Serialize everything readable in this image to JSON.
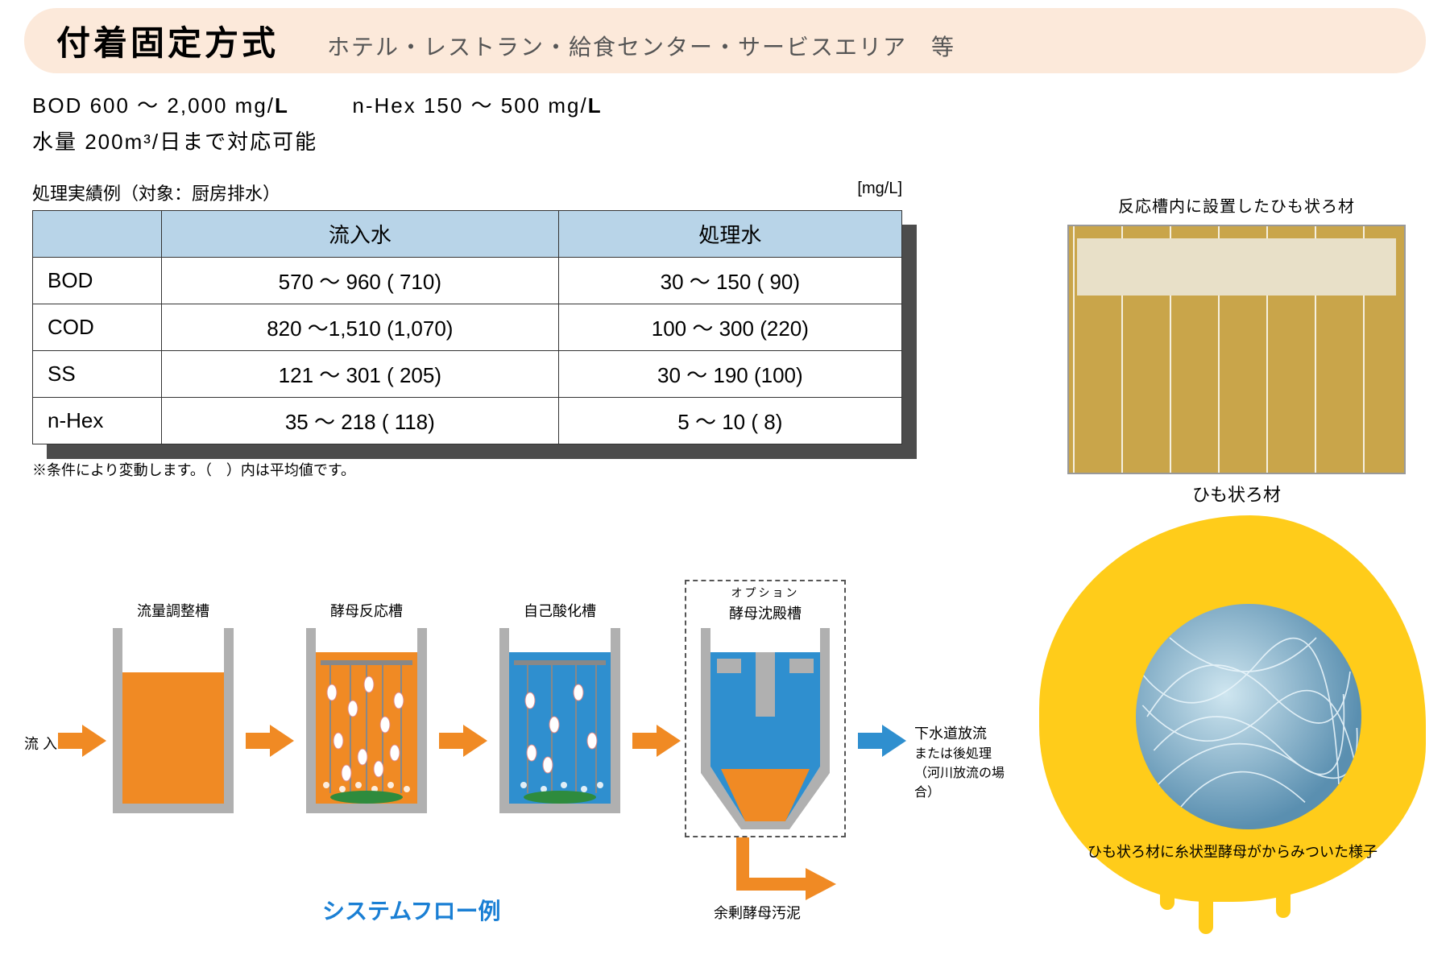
{
  "header": {
    "title": "付着固定方式",
    "subtitle": "ホテル・レストラン・給食センター・サービスエリア　等"
  },
  "specs": {
    "line1_left": "BOD 600 ～ 2,000 mg/",
    "line1_mid": "L",
    "line1_right": "n-Hex 150 ～ 500 mg/",
    "line1_end": "L",
    "line2": "水量 200m³/日まで対応可能"
  },
  "table": {
    "caption": "処理実績例（対象：厨房排水）",
    "unit": "[mg/L]",
    "headers": [
      "",
      "流入水",
      "処理水"
    ],
    "rows": [
      {
        "label": "BOD",
        "in": "570 ～  960 (  710)",
        "out": "30 ～ 150 (  90)"
      },
      {
        "label": "COD",
        "in": "820 ～1,510 (1,070)",
        "out": "100 ～ 300 (220)"
      },
      {
        "label": "SS",
        "in": "121 ～  301 (  205)",
        "out": "30 ～ 190 (100)"
      },
      {
        "label": "n-Hex",
        "in": " 35 ～  218 (  118)",
        "out": " 5 ～  10 (   8)"
      }
    ],
    "note": "※条件により変動します。（　）内は平均値です。"
  },
  "right": {
    "topcap": "反応槽内に設置したひも状ろ材",
    "photolabel": "ひも状ろ材",
    "blobcap": "ひも状ろ材に糸状型酵母がからみついた様子"
  },
  "flow": {
    "title": "システムフロー例",
    "inflow": "流 入",
    "tanks": {
      "t1": "流量調整槽",
      "t2": "酵母反応槽",
      "t3": "自己酸化槽",
      "t4": "酵母沈殿槽",
      "option": "オプション"
    },
    "outflow_a": "下水道放流",
    "outflow_b": "または後処理（河川放流の場合）",
    "sludge": "余剰酵母汚泥",
    "colors": {
      "orange": "#f08a24",
      "blue": "#2f8fcf",
      "tankwall": "#b0b0b0",
      "tankinner": "#ffffff",
      "green": "#2e8b3d",
      "arrow": "#f08a24"
    }
  }
}
